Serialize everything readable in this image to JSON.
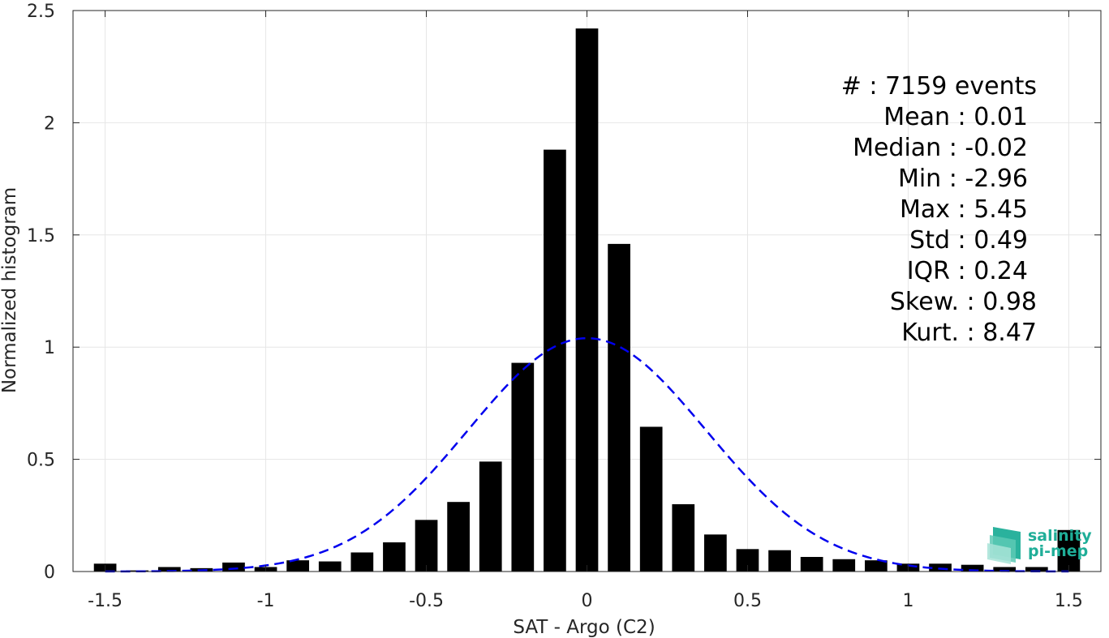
{
  "chart_data": {
    "type": "bar",
    "xlabel": "SAT - Argo (C2)",
    "ylabel": "Normalized histogram",
    "xlim": [
      -1.6,
      1.6
    ],
    "ylim": [
      0,
      2.5
    ],
    "grid": true,
    "x_ticks": [
      -1.5,
      -1,
      -0.5,
      0,
      0.5,
      1,
      1.5
    ],
    "x_tick_labels": [
      "-1.5",
      "-1",
      "-0.5",
      "0",
      "0.5",
      "1",
      "1.5"
    ],
    "y_ticks": [
      0,
      0.5,
      1,
      1.5,
      2,
      2.5
    ],
    "y_tick_labels": [
      "0",
      "0.5",
      "1",
      "1.5",
      "2",
      "2.5"
    ],
    "bar_color": "#000000",
    "bar_width": 0.07,
    "bars": {
      "x": [
        -1.5,
        -1.4,
        -1.3,
        -1.2,
        -1.1,
        -1.0,
        -0.9,
        -0.8,
        -0.7,
        -0.6,
        -0.5,
        -0.4,
        -0.3,
        -0.2,
        -0.1,
        0.0,
        0.1,
        0.2,
        0.3,
        0.4,
        0.5,
        0.6,
        0.7,
        0.8,
        0.9,
        1.0,
        1.1,
        1.2,
        1.3,
        1.4,
        1.5
      ],
      "values": [
        0.035,
        0.005,
        0.02,
        0.015,
        0.04,
        0.02,
        0.05,
        0.045,
        0.085,
        0.13,
        0.23,
        0.31,
        0.49,
        0.93,
        1.88,
        2.42,
        1.46,
        0.645,
        0.3,
        0.165,
        0.1,
        0.095,
        0.065,
        0.055,
        0.05,
        0.035,
        0.035,
        0.03,
        0.02,
        0.02,
        0.185
      ]
    },
    "fit_curve": {
      "type": "gaussian",
      "style": "dashed",
      "color": "#0000ee",
      "mean": 0.0,
      "std": 0.37,
      "peak": 1.04,
      "x_range": [
        -1.5,
        1.5
      ]
    }
  },
  "stats_lines": [
    "#  : 7159 events",
    "Mean : 0.01",
    "Median : -0.02",
    "Min : -2.96",
    "Max : 5.45",
    "Std : 0.49",
    "IQR : 0.24",
    "Skew. : 0.98",
    "Kurt. : 8.47"
  ],
  "logo": {
    "line1": "salinity",
    "line2": "pi-mep",
    "color": "#1fae98"
  }
}
